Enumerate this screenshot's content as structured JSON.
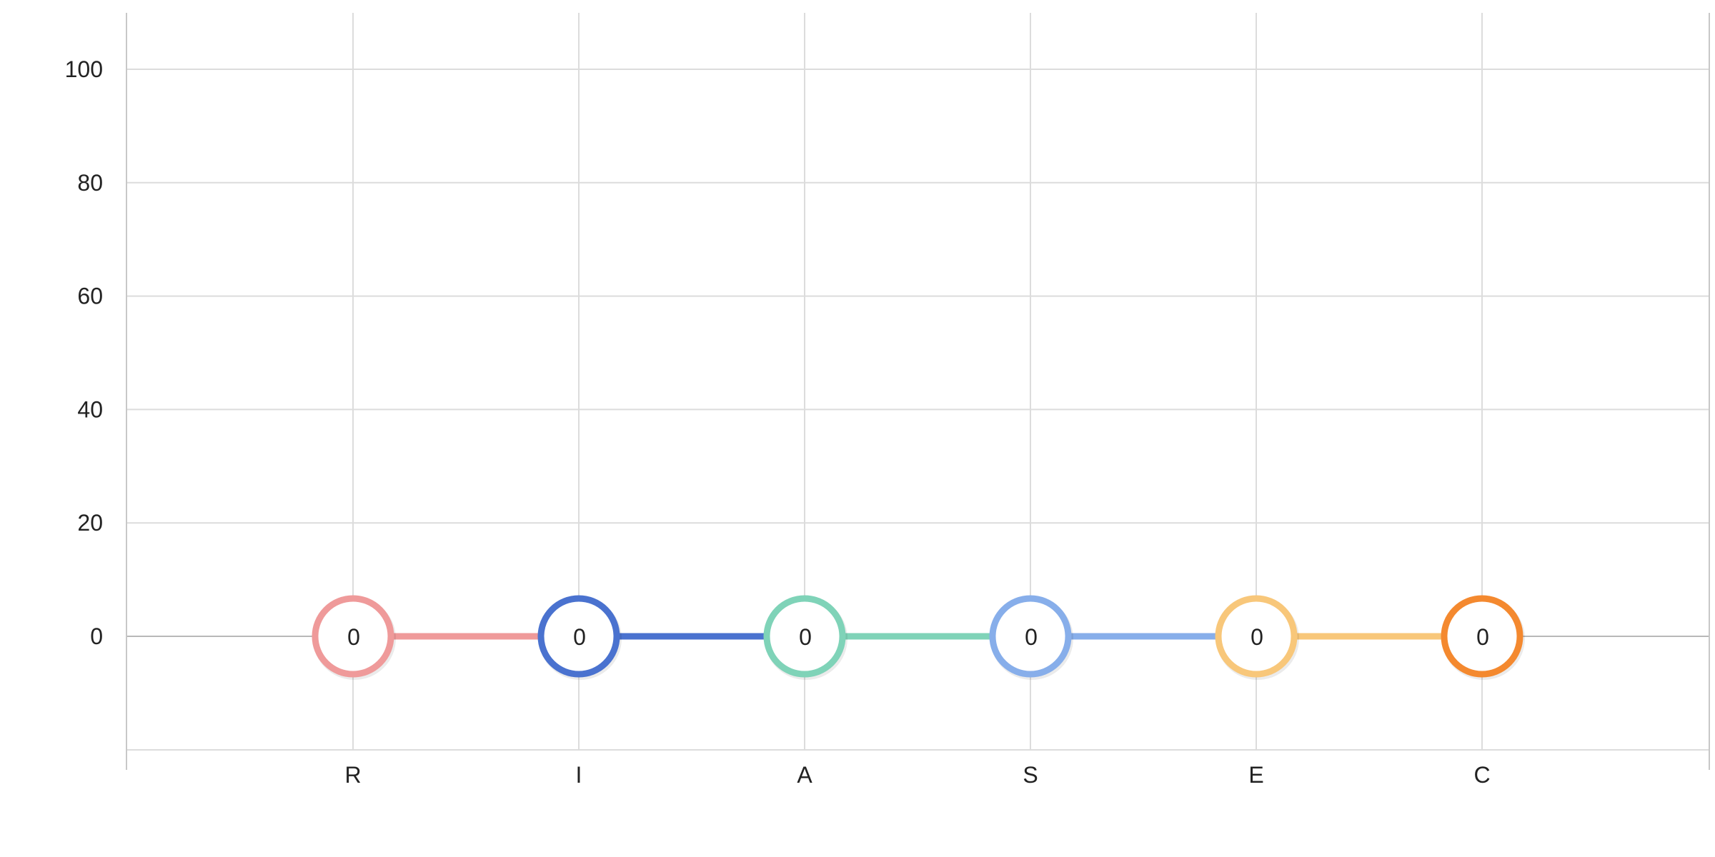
{
  "chart_data": {
    "type": "line",
    "categories": [
      "R",
      "I",
      "A",
      "S",
      "E",
      "C"
    ],
    "values": [
      0,
      0,
      0,
      0,
      0,
      0
    ],
    "data_labels": [
      "0",
      "0",
      "0",
      "0",
      "0",
      "0"
    ],
    "point_colors": [
      "#ef9a9a",
      "#4a72cf",
      "#7fd3b8",
      "#87aeea",
      "#f8c77a",
      "#f4892f"
    ],
    "segment_colors": [
      "#ef9a9a",
      "#4a72cf",
      "#7fd3b8",
      "#87aeea",
      "#f8c77a"
    ],
    "ylim": [
      -20,
      110
    ],
    "y_ticks": [
      0,
      20,
      40,
      60,
      80,
      100
    ],
    "y_tick_labels": [
      "0",
      "20",
      "40",
      "60",
      "80",
      "100"
    ],
    "title": "",
    "xlabel": "",
    "ylabel": "",
    "grid": true,
    "legend": "none"
  }
}
